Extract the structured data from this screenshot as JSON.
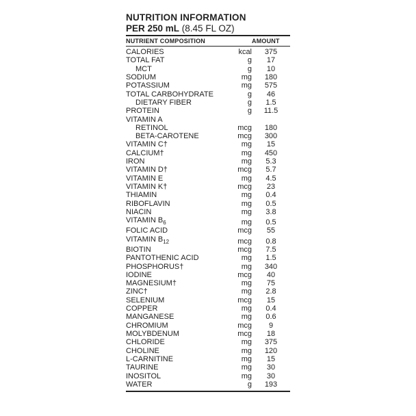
{
  "title": "NUTRITION INFORMATION",
  "serving_bold": "PER 250 mL",
  "serving_rest": " (8.45 FL OZ)",
  "header_name": "NUTRIENT COMPOSITION",
  "header_amount": "AMOUNT",
  "rows": [
    {
      "name": "CALORIES",
      "unit": "kcal",
      "amount": "375",
      "indent": 0
    },
    {
      "name": "TOTAL FAT",
      "unit": "g",
      "amount": "17",
      "indent": 0
    },
    {
      "name": "MCT",
      "unit": "g",
      "amount": "10",
      "indent": 1
    },
    {
      "name": "SODIUM",
      "unit": "mg",
      "amount": "180",
      "indent": 0
    },
    {
      "name": "POTASSIUM",
      "unit": "mg",
      "amount": "575",
      "indent": 0
    },
    {
      "name": "TOTAL CARBOHYDRATE",
      "unit": "g",
      "amount": "46",
      "indent": 0
    },
    {
      "name": "DIETARY FIBER",
      "unit": "g",
      "amount": "1.5",
      "indent": 1
    },
    {
      "name": "PROTEIN",
      "unit": "g",
      "amount": "11.5",
      "indent": 0
    },
    {
      "name": "VITAMIN A",
      "unit": "",
      "amount": "",
      "indent": 0
    },
    {
      "name": "RETINOL",
      "unit": "mcg",
      "amount": "180",
      "indent": 1
    },
    {
      "name": "BETA-CAROTENE",
      "unit": "mcg",
      "amount": "300",
      "indent": 1
    },
    {
      "name": "VITAMIN C†",
      "unit": "mg",
      "amount": "15",
      "indent": 0
    },
    {
      "name": "CALCIUM†",
      "unit": "mg",
      "amount": "450",
      "indent": 0
    },
    {
      "name": "IRON",
      "unit": "mg",
      "amount": "5.3",
      "indent": 0
    },
    {
      "name": "VITAMIN D†",
      "unit": "mcg",
      "amount": "5.7",
      "indent": 0
    },
    {
      "name": "VITAMIN E",
      "unit": "mg",
      "amount": "4.5",
      "indent": 0
    },
    {
      "name": "VITAMIN K†",
      "unit": "mcg",
      "amount": "23",
      "indent": 0
    },
    {
      "name": "THIAMIN",
      "unit": "mg",
      "amount": "0.4",
      "indent": 0
    },
    {
      "name": "RIBOFLAVIN",
      "unit": "mg",
      "amount": "0.5",
      "indent": 0
    },
    {
      "name": "NIACIN",
      "unit": "mg",
      "amount": "3.8",
      "indent": 0
    },
    {
      "name": "VITAMIN B",
      "sub": "6",
      "unit": "mg",
      "amount": "0.5",
      "indent": 0
    },
    {
      "name": "FOLIC ACID",
      "unit": "mcg",
      "amount": "55",
      "indent": 0
    },
    {
      "name": "VITAMIN B",
      "sub": "12",
      "unit": "mcg",
      "amount": "0.8",
      "indent": 0
    },
    {
      "name": "BIOTIN",
      "unit": "mcg",
      "amount": "7.5",
      "indent": 0
    },
    {
      "name": "PANTOTHENIC ACID",
      "unit": "mg",
      "amount": "1.5",
      "indent": 0
    },
    {
      "name": "PHOSPHORUS†",
      "unit": "mg",
      "amount": "340",
      "indent": 0
    },
    {
      "name": "IODINE",
      "unit": "mcg",
      "amount": "40",
      "indent": 0
    },
    {
      "name": "MAGNESIUM†",
      "unit": "mg",
      "amount": "75",
      "indent": 0
    },
    {
      "name": "ZINC†",
      "unit": "mg",
      "amount": "2.8",
      "indent": 0
    },
    {
      "name": "SELENIUM",
      "unit": "mcg",
      "amount": "15",
      "indent": 0
    },
    {
      "name": "COPPER",
      "unit": "mg",
      "amount": "0.4",
      "indent": 0
    },
    {
      "name": "MANGANESE",
      "unit": "mg",
      "amount": "0.6",
      "indent": 0
    },
    {
      "name": "CHROMIUM",
      "unit": "mcg",
      "amount": "9",
      "indent": 0
    },
    {
      "name": "MOLYBDENUM",
      "unit": "mcg",
      "amount": "18",
      "indent": 0
    },
    {
      "name": "CHLORIDE",
      "unit": "mg",
      "amount": "375",
      "indent": 0
    },
    {
      "name": "CHOLINE",
      "unit": "mg",
      "amount": "120",
      "indent": 0
    },
    {
      "name": "L-CARNITINE",
      "unit": "mg",
      "amount": "15",
      "indent": 0
    },
    {
      "name": "TAURINE",
      "unit": "mg",
      "amount": "30",
      "indent": 0
    },
    {
      "name": "INOSITOL",
      "unit": "mg",
      "amount": "30",
      "indent": 0
    },
    {
      "name": "WATER",
      "unit": "g",
      "amount": "193",
      "indent": 0
    }
  ],
  "colors": {
    "text": "#222222",
    "bg": "#ffffff"
  },
  "typography": {
    "title_pt": 13.5,
    "row_pt": 11,
    "header_pt": 9
  }
}
